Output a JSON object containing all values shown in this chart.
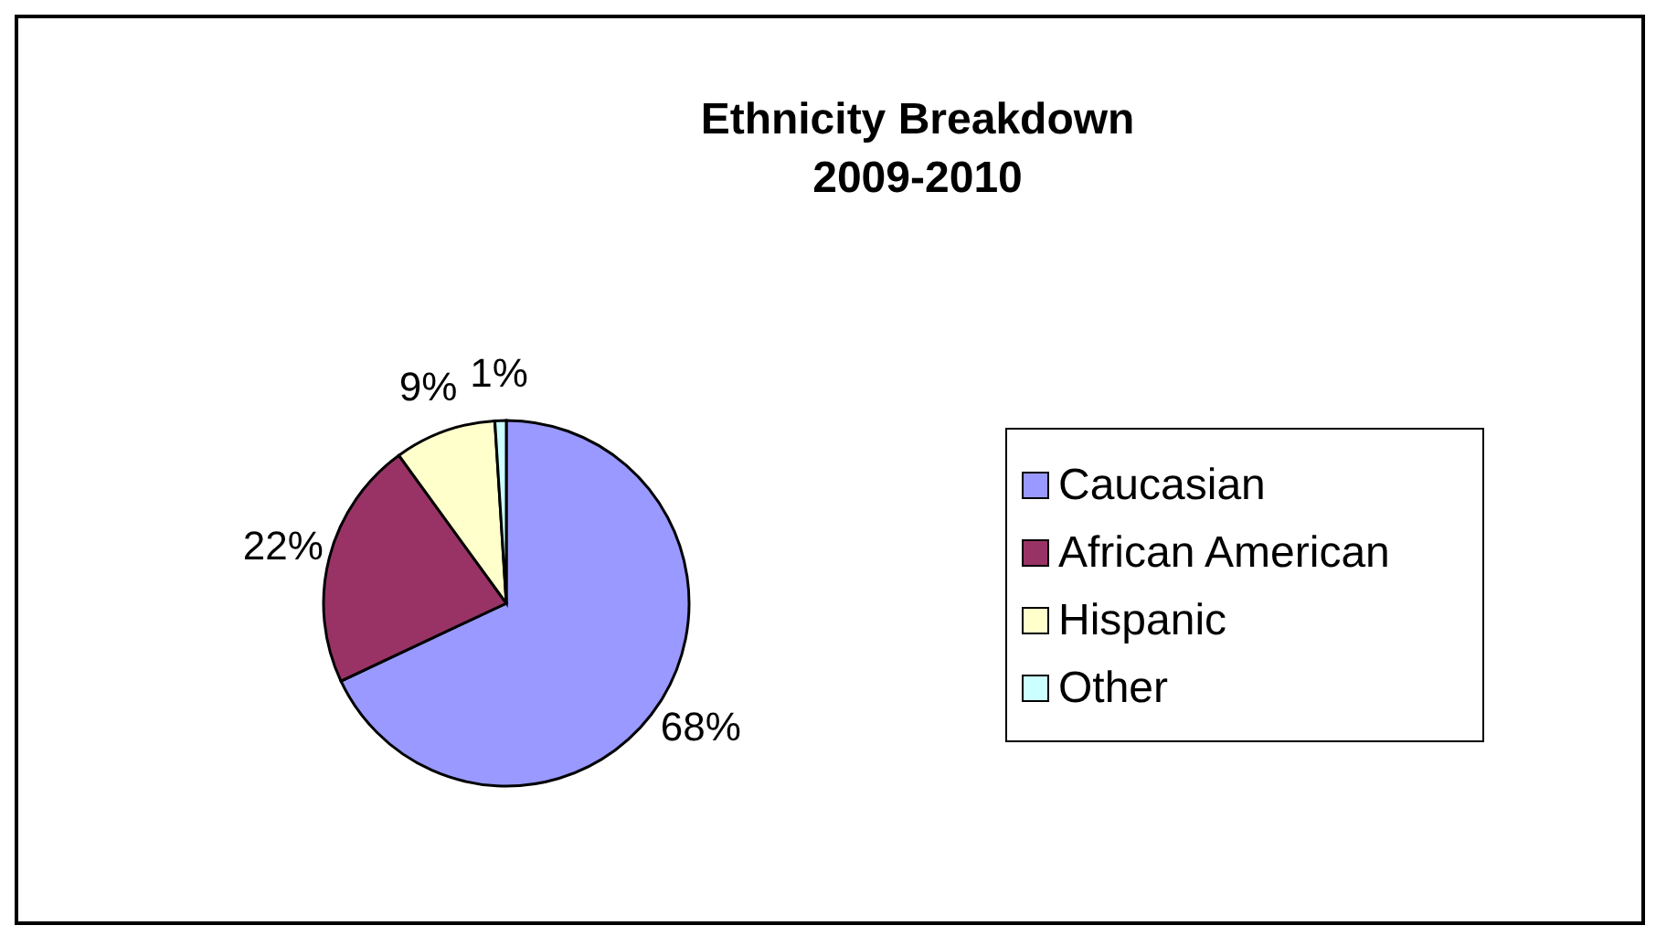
{
  "chart_data": {
    "type": "pie",
    "title": "Ethnicity Breakdown\n2009-2010",
    "categories": [
      "Caucasian",
      "African American",
      "Hispanic",
      "Other"
    ],
    "values": [
      68,
      22,
      9,
      1
    ],
    "colors": [
      "#9999ff",
      "#993366",
      "#ffffcc",
      "#ccffff"
    ],
    "value_labels": [
      "68%",
      "22%",
      "9%",
      "1%"
    ],
    "legend": "right"
  }
}
